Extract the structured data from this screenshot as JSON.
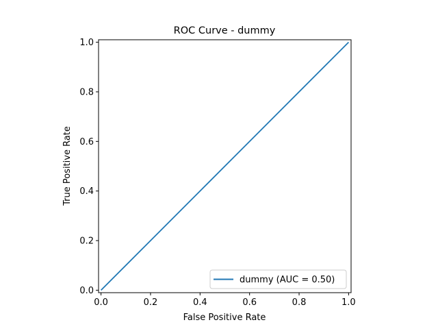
{
  "chart_data": {
    "type": "line",
    "title": "ROC Curve - dummy",
    "xlabel": "False Positive Rate",
    "ylabel": "True Positive Rate",
    "xlim": [
      -0.01,
      1.01
    ],
    "ylim": [
      -0.01,
      1.01
    ],
    "xticks": [
      0.0,
      0.2,
      0.4,
      0.6,
      0.8,
      1.0
    ],
    "yticks": [
      0.0,
      0.2,
      0.4,
      0.6,
      0.8,
      1.0
    ],
    "xtick_labels": [
      "0.0",
      "0.2",
      "0.4",
      "0.6",
      "0.8",
      "1.0"
    ],
    "ytick_labels": [
      "0.0",
      "0.2",
      "0.4",
      "0.6",
      "0.8",
      "1.0"
    ],
    "grid": false,
    "legend_position": "lower right",
    "series": [
      {
        "name": "dummy (AUC = 0.50)",
        "color": "#1f77b4",
        "x": [
          0.0,
          1.0
        ],
        "y": [
          0.0,
          1.0
        ]
      }
    ]
  }
}
